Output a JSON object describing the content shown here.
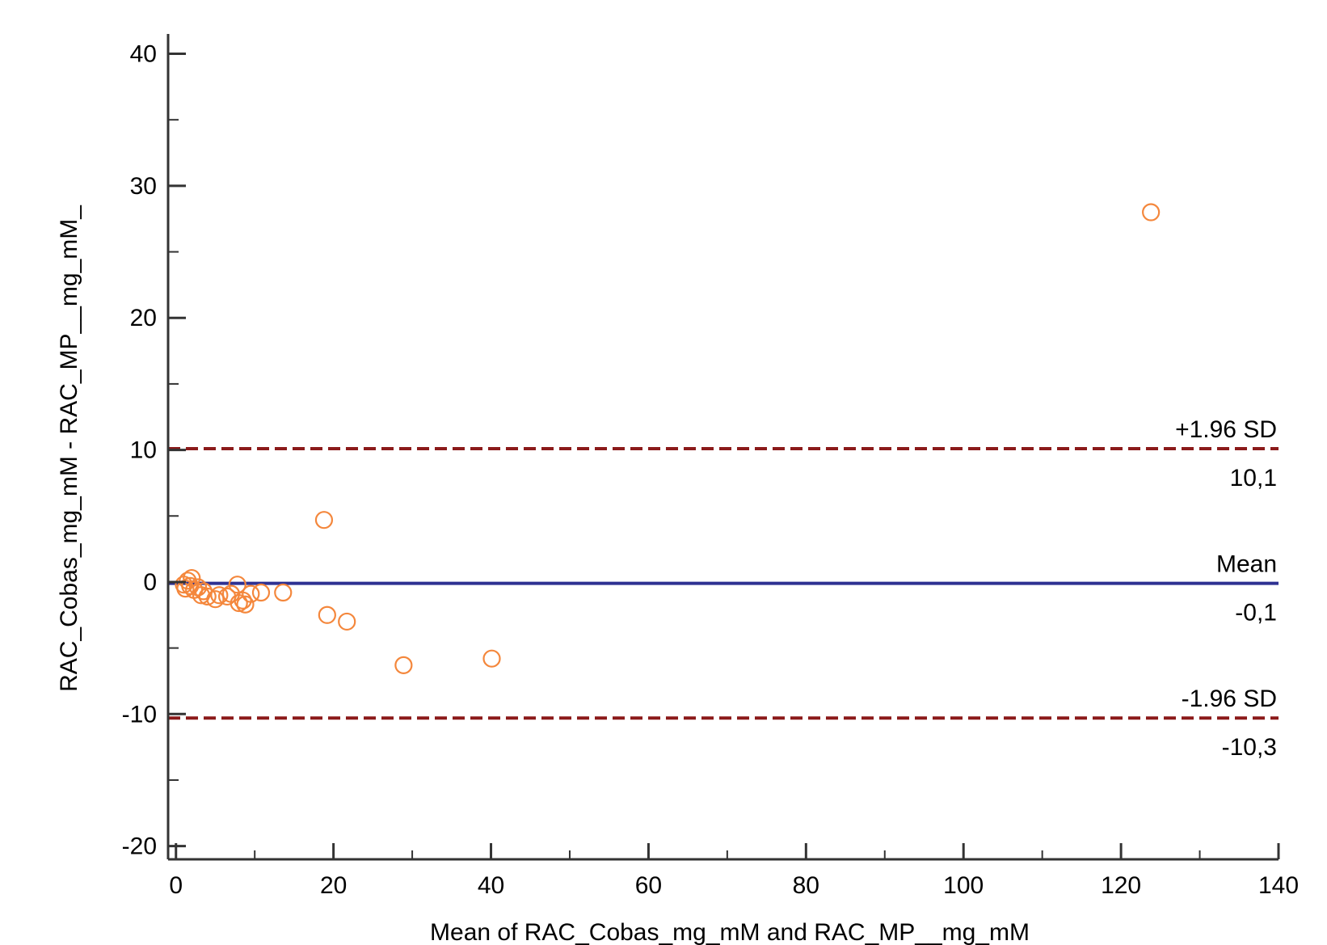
{
  "chart_data": {
    "type": "scatter",
    "xlabel": "Mean of RAC_Cobas_mg_mM and RAC_MP__mg_mM",
    "ylabel": "RAC_Cobas_mg_mM - RAC_MP__mg_mM_",
    "xlim": [
      -1,
      140
    ],
    "ylim": [
      -21,
      41.5
    ],
    "x_ticks": [
      0,
      20,
      40,
      60,
      80,
      100,
      120,
      140
    ],
    "y_ticks": [
      -20,
      -10,
      0,
      10,
      20,
      30,
      40
    ],
    "grid": false,
    "colors": {
      "points": "#f4873c",
      "mean_line": "#2e3192",
      "limit_lines": "#8b1a1a",
      "axis": "#333333"
    },
    "reference_lines": [
      {
        "id": "upper",
        "label": "+1.96 SD",
        "value_label": "10,1",
        "y": 10.1,
        "style": "dashed"
      },
      {
        "id": "mean",
        "label": "Mean",
        "value_label": "-0,1",
        "y": -0.1,
        "style": "solid"
      },
      {
        "id": "lower",
        "label": "-1.96 SD",
        "value_label": "-10,3",
        "y": -10.3,
        "style": "dashed"
      }
    ],
    "points": [
      {
        "x": 1.0,
        "y": -0.2
      },
      {
        "x": 1.2,
        "y": -0.5
      },
      {
        "x": 1.5,
        "y": 0.1
      },
      {
        "x": 1.8,
        "y": -0.3
      },
      {
        "x": 2.0,
        "y": 0.3
      },
      {
        "x": 2.3,
        "y": -0.6
      },
      {
        "x": 2.8,
        "y": -0.4
      },
      {
        "x": 3.2,
        "y": -1.0
      },
      {
        "x": 3.5,
        "y": -0.7
      },
      {
        "x": 4.0,
        "y": -1.1
      },
      {
        "x": 5.0,
        "y": -1.3
      },
      {
        "x": 5.5,
        "y": -1.0
      },
      {
        "x": 6.5,
        "y": -1.1
      },
      {
        "x": 7.0,
        "y": -0.9
      },
      {
        "x": 7.8,
        "y": -0.2
      },
      {
        "x": 8.0,
        "y": -1.6
      },
      {
        "x": 8.5,
        "y": -1.4
      },
      {
        "x": 8.8,
        "y": -1.7
      },
      {
        "x": 9.5,
        "y": -0.9
      },
      {
        "x": 10.8,
        "y": -0.8
      },
      {
        "x": 13.6,
        "y": -0.8
      },
      {
        "x": 18.8,
        "y": 4.7
      },
      {
        "x": 19.2,
        "y": -2.5
      },
      {
        "x": 21.7,
        "y": -3.0
      },
      {
        "x": 28.9,
        "y": -6.3
      },
      {
        "x": 40.1,
        "y": -5.8
      },
      {
        "x": 123.8,
        "y": 28.0
      }
    ]
  }
}
